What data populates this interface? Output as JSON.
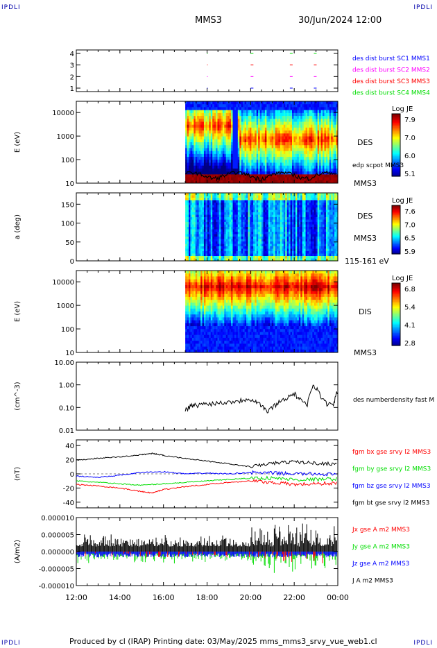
{
  "header": {
    "left_corner": "IPDLI",
    "right_corner": "IPDLI",
    "spacecraft": "MMS3",
    "datetime": "30/Jun/2024 12:00",
    "bottom_left_corner": "IPDLI",
    "bottom_right_corner": "IPDLI"
  },
  "footer": {
    "text": "Produced by cl (IRAP)   Printing date: 03/May/2025   mms_mms3_srvy_vue_web1.cl"
  },
  "colors": {
    "blue": "#0000ff",
    "magenta": "#ff00ff",
    "red": "#ff0000",
    "green": "#00dd00",
    "black": "#000000"
  },
  "chart_data": [
    {
      "type": "scatter",
      "panel": "burst",
      "yticks": [
        "1",
        "2",
        "3",
        "4"
      ],
      "ylim": [
        0.7,
        4.3
      ],
      "legend": [
        {
          "name": "des dist burst SC1 MMS1",
          "color": "#0000ff"
        },
        {
          "name": "des dist burst SC2 MMS2",
          "color": "#ff00ff"
        },
        {
          "name": "des dist burst SC3 MMS3",
          "color": "#ff0000"
        },
        {
          "name": "des dist burst SC4 MMS4",
          "color": "#00dd00"
        }
      ],
      "markers_hours": [
        18.0,
        20.0,
        21.8,
        22.9
      ]
    },
    {
      "type": "heatmap",
      "panel": "des_energy",
      "ylabel": "E (eV)",
      "yticks": [
        "10",
        "100",
        "1000",
        "10000"
      ],
      "ylim": [
        10,
        30000
      ],
      "log_y": true,
      "data_start_hour": 17.0,
      "colorbar": {
        "label": "Log JE",
        "ticks": [
          "7.9",
          "7.0",
          "6.0",
          "5.1"
        ]
      },
      "species_label": "DES",
      "overlay_label": "edp scpot MMS3",
      "sc_label": "MMS3"
    },
    {
      "type": "heatmap",
      "panel": "des_pitch",
      "ylabel": "a (deg)",
      "yticks": [
        "0",
        "50",
        "100",
        "150"
      ],
      "ylim": [
        0,
        180
      ],
      "data_start_hour": 17.0,
      "colorbar": {
        "label": "Log JE",
        "ticks": [
          "7.6",
          "7.0",
          "6.5",
          "5.9"
        ]
      },
      "species_label": "DES",
      "sc_label": "MMS3",
      "energy_range": "115-161 eV"
    },
    {
      "type": "heatmap",
      "panel": "dis_energy",
      "ylabel": "E (eV)",
      "yticks": [
        "10",
        "100",
        "1000",
        "10000"
      ],
      "ylim": [
        10,
        30000
      ],
      "log_y": true,
      "data_start_hour": 17.0,
      "colorbar": {
        "label": "Log JE",
        "ticks": [
          "6.8",
          "5.4",
          "4.1",
          "2.8"
        ]
      },
      "species_label": "DIS",
      "sc_label": "MMS3"
    },
    {
      "type": "line",
      "panel": "density",
      "ylabel": "(cm^-3)",
      "yticks": [
        "0.01",
        "0.10",
        "1.00",
        "10.00"
      ],
      "ylim": [
        0.01,
        10
      ],
      "log_y": true,
      "series": [
        {
          "name": "des numberdensity fast M",
          "color": "#000000",
          "x": [
            17.0,
            17.3,
            17.6,
            18.0,
            18.5,
            19.0,
            19.5,
            19.9,
            20.2,
            20.5,
            20.8,
            21.2,
            21.6,
            22.0,
            22.3,
            22.6,
            22.9,
            23.2,
            23.5,
            23.8,
            24.0
          ],
          "y": [
            0.08,
            0.12,
            0.13,
            0.15,
            0.16,
            0.18,
            0.2,
            0.25,
            0.2,
            0.12,
            0.06,
            0.15,
            0.25,
            0.4,
            0.2,
            0.12,
            1.0,
            0.3,
            0.15,
            0.12,
            0.5
          ]
        }
      ]
    },
    {
      "type": "line",
      "panel": "magnetic_field",
      "ylabel": "(nT)",
      "yticks": [
        "-40",
        "-20",
        "0",
        "20",
        "40"
      ],
      "ylim": [
        -48,
        48
      ],
      "series": [
        {
          "name": "fgm bx gse srvy l2 MMS3",
          "color": "#ff0000",
          "x": [
            12,
            13,
            14,
            15,
            15.5,
            16,
            17,
            18,
            19,
            20,
            21,
            22,
            23,
            24
          ],
          "y": [
            -15,
            -17,
            -20,
            -25,
            -27,
            -22,
            -18,
            -15,
            -12,
            -10,
            -12,
            -15,
            -14,
            -13
          ]
        },
        {
          "name": "fgm by gse srvy l2 MMS3",
          "color": "#00dd00",
          "x": [
            12,
            13,
            14,
            15,
            16,
            17,
            18,
            19,
            20,
            21,
            22,
            23,
            24
          ],
          "y": [
            -10,
            -12,
            -14,
            -16,
            -14,
            -12,
            -10,
            -8,
            -6,
            -6,
            -8,
            -8,
            -7
          ]
        },
        {
          "name": "fgm bz gse srvy l2 MMS3",
          "color": "#0000ff",
          "x": [
            12,
            13,
            14,
            15,
            16,
            17,
            18,
            19,
            20,
            21,
            22,
            23,
            24
          ],
          "y": [
            -3,
            -5,
            -2,
            2,
            3,
            0,
            1,
            0,
            2,
            1,
            0,
            0,
            -1
          ]
        },
        {
          "name": "fgm bt gse srvy l2 MMS3",
          "color": "#000000",
          "x": [
            12,
            13,
            14,
            15,
            15.5,
            16,
            17,
            18,
            19,
            20,
            21,
            22,
            23,
            24
          ],
          "y": [
            19,
            22,
            24,
            27,
            29,
            26,
            22,
            18,
            14,
            10,
            15,
            17,
            15,
            14
          ]
        }
      ]
    },
    {
      "type": "line",
      "panel": "current",
      "ylabel": "(A/m2)",
      "yticks": [
        "-0.000010",
        "-0.000005",
        "0.000000",
        "0.000005",
        "0.000010"
      ],
      "ylim": [
        -1e-05,
        1e-05
      ],
      "series": [
        {
          "name": "Jx gse A m2 MMS3",
          "color": "#ff0000"
        },
        {
          "name": "Jy gse A m2 MMS3",
          "color": "#00dd00"
        },
        {
          "name": "Jz gse A m2 MMS3",
          "color": "#0000ff"
        },
        {
          "name": "J A m2 MMS3",
          "color": "#000000"
        }
      ]
    }
  ],
  "xaxis": {
    "ticks": [
      "12:00",
      "14:00",
      "16:00",
      "18:00",
      "20:00",
      "22:00",
      "00:00"
    ],
    "xlim": [
      12,
      24
    ]
  }
}
